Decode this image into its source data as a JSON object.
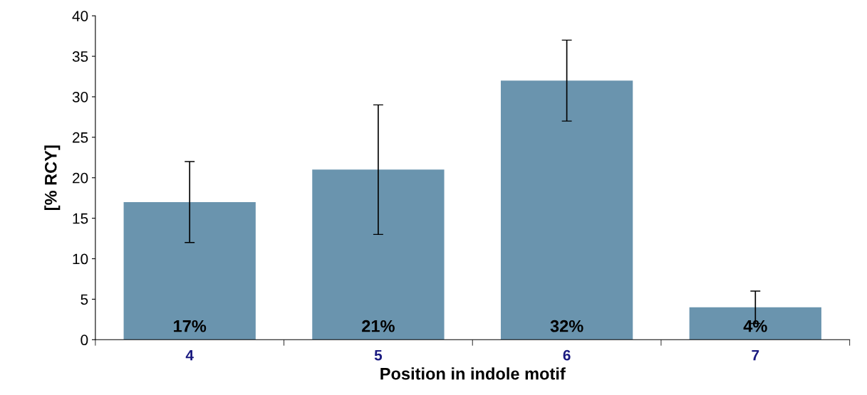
{
  "chart_data": {
    "type": "bar",
    "xlabel": "Position in indole motif",
    "ylabel": "[% RCY]",
    "categories": [
      "4",
      "5",
      "6",
      "7"
    ],
    "values": [
      17,
      21,
      32,
      4
    ],
    "errors": [
      5,
      8,
      5,
      2
    ],
    "value_labels": [
      "17%",
      "21%",
      "32%",
      "4%"
    ],
    "color": "#6a94ae",
    "ylim": [
      0,
      40
    ],
    "yticks": [
      0,
      5,
      10,
      15,
      20,
      25,
      30,
      35,
      40
    ],
    "grid": false
  }
}
